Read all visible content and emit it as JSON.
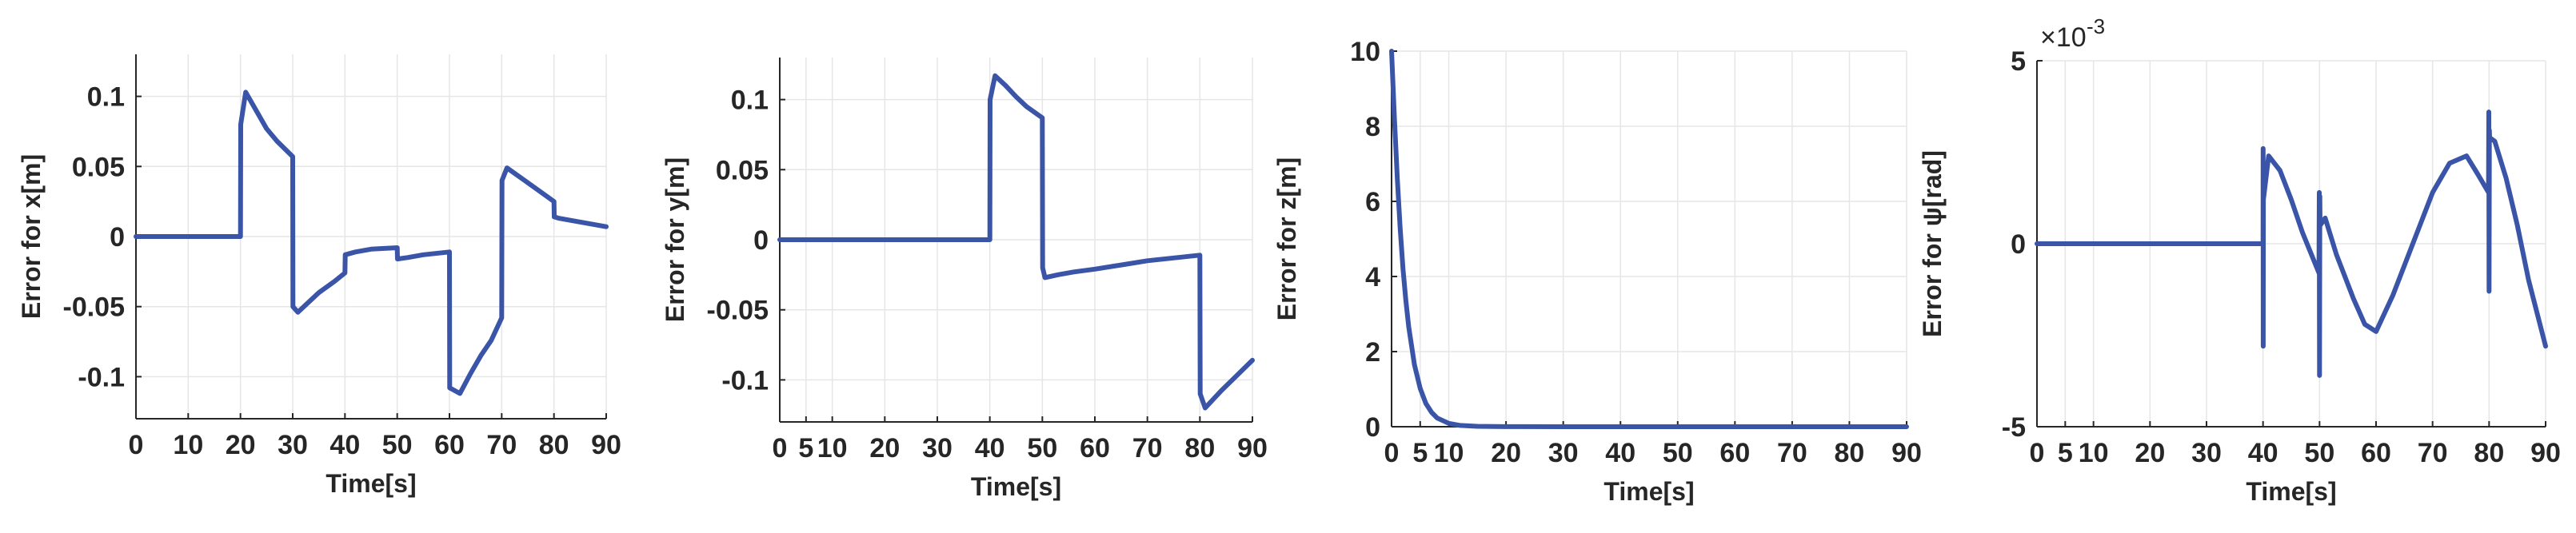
{
  "chart_data": [
    {
      "type": "line",
      "title": "",
      "xlabel": "Time[s]",
      "ylabel": "Error for x[m]",
      "xlim": [
        0,
        90
      ],
      "ylim": [
        -0.13,
        0.13
      ],
      "xticks": [
        "0",
        "10",
        "20",
        "30",
        "40",
        "50",
        "60",
        "70",
        "80",
        "90"
      ],
      "xtick_values": [
        0,
        10,
        20,
        30,
        40,
        50,
        60,
        70,
        80,
        90
      ],
      "yticks": [
        "-0.1",
        "-0.05",
        "0",
        "0.05",
        "0.1"
      ],
      "ytick_values": [
        -0.1,
        -0.05,
        0,
        0.05,
        0.1
      ],
      "grid": true,
      "color": "#3a55a8",
      "series": [
        {
          "x": [
            0,
            20,
            20.05,
            21,
            23,
            25,
            27,
            30,
            30.05,
            31,
            33,
            35,
            38,
            40,
            40.05,
            42,
            45,
            50,
            50.05,
            52,
            55,
            60,
            60.05,
            62,
            64,
            66,
            68,
            70,
            70.05,
            71,
            74,
            77,
            80,
            80.05,
            81,
            84,
            87,
            90
          ],
          "y": [
            0,
            0,
            0.08,
            0.103,
            0.09,
            0.077,
            0.068,
            0.057,
            -0.05,
            -0.054,
            -0.047,
            -0.04,
            -0.032,
            -0.026,
            -0.013,
            -0.011,
            -0.009,
            -0.008,
            -0.016,
            -0.015,
            -0.013,
            -0.011,
            -0.108,
            -0.112,
            -0.098,
            -0.085,
            -0.074,
            -0.058,
            0.04,
            0.049,
            0.041,
            0.033,
            0.025,
            0.014,
            0.013,
            0.011,
            0.009,
            0.007
          ]
        }
      ]
    },
    {
      "type": "line",
      "title": "",
      "xlabel": "Time[s]",
      "ylabel": "Error for y[m]",
      "xlim": [
        0,
        90
      ],
      "ylim": [
        -0.13,
        0.13
      ],
      "xticks": [
        "0",
        "5",
        "10",
        "20",
        "30",
        "40",
        "50",
        "60",
        "70",
        "80",
        "90"
      ],
      "xtick_values": [
        0,
        5,
        10,
        20,
        30,
        40,
        50,
        60,
        70,
        80,
        90
      ],
      "yticks": [
        "-0.1",
        "-0.05",
        "0",
        "0.05",
        "0.1"
      ],
      "ytick_values": [
        -0.1,
        -0.05,
        0,
        0.05,
        0.1
      ],
      "grid": true,
      "color": "#3a55a8",
      "series": [
        {
          "x": [
            0,
            40,
            40.05,
            41,
            43,
            45,
            47,
            50,
            50.05,
            50.5,
            53,
            56,
            60,
            65,
            70,
            75,
            80,
            80.05,
            81,
            84,
            87,
            90
          ],
          "y": [
            0,
            0,
            0.1,
            0.117,
            0.11,
            0.102,
            0.095,
            0.087,
            -0.02,
            -0.027,
            -0.025,
            -0.023,
            -0.021,
            -0.018,
            -0.015,
            -0.013,
            -0.011,
            -0.11,
            -0.12,
            -0.108,
            -0.097,
            -0.086
          ]
        }
      ]
    },
    {
      "type": "line",
      "title": "",
      "xlabel": "Time[s]",
      "ylabel": "Error for z[m]",
      "xlim": [
        0,
        90
      ],
      "ylim": [
        0,
        10
      ],
      "xticks": [
        "0",
        "5",
        "10",
        "20",
        "30",
        "40",
        "50",
        "60",
        "70",
        "80",
        "90"
      ],
      "xtick_values": [
        0,
        5,
        10,
        20,
        30,
        40,
        50,
        60,
        70,
        80,
        90
      ],
      "yticks": [
        "0",
        "2",
        "4",
        "6",
        "8",
        "10"
      ],
      "ytick_values": [
        0,
        2,
        4,
        6,
        8,
        10
      ],
      "grid": true,
      "color": "#3a55a8",
      "series": [
        {
          "x": [
            0,
            0.5,
            1,
            1.5,
            2,
            2.5,
            3,
            4,
            5,
            6,
            7,
            8,
            10,
            12,
            15,
            20,
            30,
            50,
            70,
            90
          ],
          "y": [
            10,
            8.2,
            6.6,
            5.3,
            4.2,
            3.35,
            2.65,
            1.65,
            1.02,
            0.62,
            0.38,
            0.23,
            0.09,
            0.035,
            0.01,
            0.003,
            0.001,
            0,
            0,
            0
          ]
        }
      ]
    },
    {
      "type": "line",
      "title": "",
      "xlabel": "Time[s]",
      "ylabel": "Error for ψ[rad]",
      "exponent_label": "×10",
      "exponent_power": "-3",
      "xlim": [
        0,
        90
      ],
      "ylim": [
        -5,
        5
      ],
      "xticks": [
        "0",
        "5",
        "10",
        "20",
        "30",
        "40",
        "50",
        "60",
        "70",
        "80",
        "90"
      ],
      "xtick_values": [
        0,
        5,
        10,
        20,
        30,
        40,
        50,
        60,
        70,
        80,
        90
      ],
      "yticks": [
        "-5",
        "0",
        "5"
      ],
      "ytick_values": [
        -5,
        0,
        5
      ],
      "grid": true,
      "color": "#3a55a8",
      "series": [
        {
          "x": [
            0,
            40,
            40.02,
            40.04,
            40.06,
            41,
            43,
            45,
            47,
            49.9,
            49.95,
            50,
            50.05,
            50.1,
            51,
            53,
            56,
            58,
            60,
            63,
            66,
            70,
            73,
            76,
            78,
            79.9,
            79.95,
            80,
            80.05,
            80.1,
            81,
            83,
            85,
            87,
            90
          ],
          "y": [
            0,
            0,
            2.6,
            -2.8,
            1.2,
            2.4,
            2.0,
            1.2,
            0.3,
            -0.8,
            1.4,
            -3.6,
            1.3,
            0.5,
            0.7,
            -0.3,
            -1.5,
            -2.2,
            -2.4,
            -1.4,
            -0.2,
            1.4,
            2.2,
            2.4,
            1.9,
            1.4,
            3.6,
            -1.3,
            3.1,
            2.9,
            2.8,
            1.8,
            0.5,
            -1.0,
            -2.8
          ]
        }
      ]
    }
  ]
}
